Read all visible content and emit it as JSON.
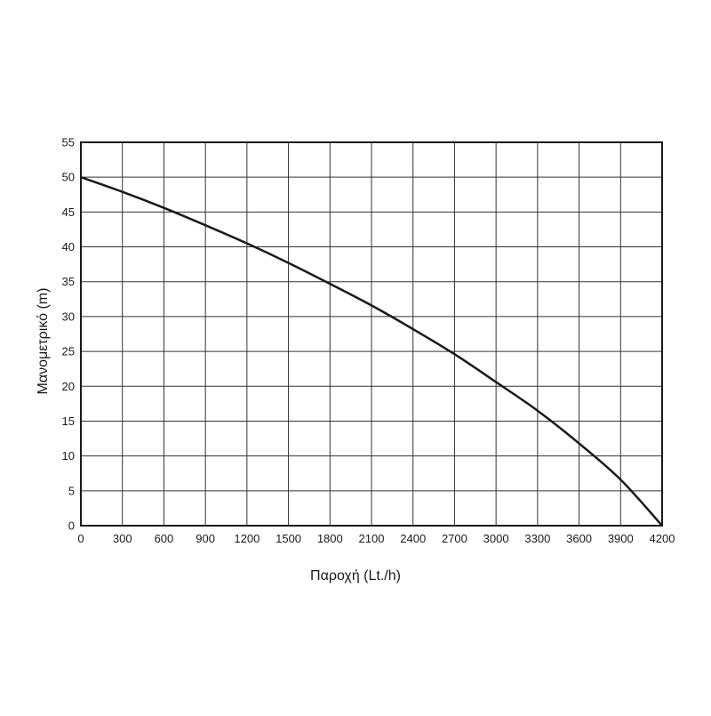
{
  "chart_data": {
    "type": "line",
    "xlabel": "Παροχή (Lt./h)",
    "ylabel": "Μανομετρικό  (m)",
    "xlim": [
      0,
      4200
    ],
    "ylim": [
      0,
      55
    ],
    "x_ticks": [
      "0",
      "300",
      "600",
      "900",
      "1200",
      "1500",
      "1800",
      "2100",
      "2400",
      "2700",
      "3000",
      "3300",
      "3600",
      "3900",
      "4200"
    ],
    "y_ticks": [
      "0",
      "5",
      "10",
      "15",
      "20",
      "25",
      "30",
      "35",
      "40",
      "45",
      "50",
      "55"
    ],
    "grid": true,
    "legend": "none",
    "series": [
      {
        "color": "#1a1a1a",
        "points": [
          [
            0,
            50
          ],
          [
            300,
            47.9
          ],
          [
            600,
            45.6
          ],
          [
            900,
            43.1
          ],
          [
            1200,
            40.5
          ],
          [
            1500,
            37.7
          ],
          [
            1800,
            34.7
          ],
          [
            2100,
            31.6
          ],
          [
            2400,
            28.2
          ],
          [
            2700,
            24.6
          ],
          [
            3000,
            20.6
          ],
          [
            3300,
            16.5
          ],
          [
            3600,
            11.8
          ],
          [
            3900,
            6.6
          ],
          [
            4200,
            0
          ]
        ]
      }
    ]
  }
}
